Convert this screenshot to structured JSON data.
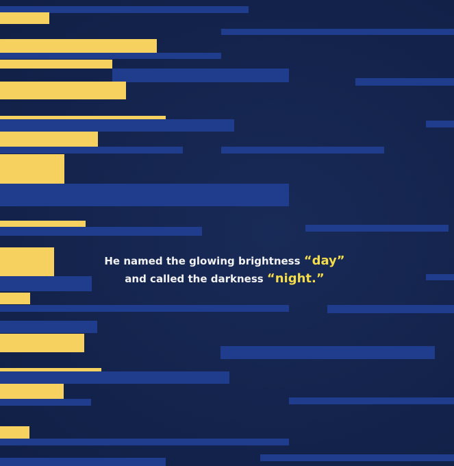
{
  "caption": {
    "line1_text": "He named the glowing brightness ",
    "line1_highlight": "“day”",
    "line2_text": "and called the darkness ",
    "line2_highlight": "“night.”"
  },
  "colors": {
    "background": "#14234d",
    "blue_bar": "#1f3d8c",
    "yellow_bar": "#f7d15f",
    "text": "#f2f2f2",
    "highlight_text": "#f5dc4a"
  }
}
